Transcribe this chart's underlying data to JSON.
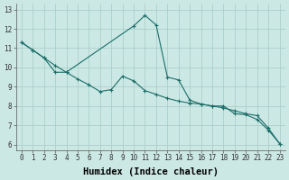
{
  "xlabel": "Humidex (Indice chaleur)",
  "bg_color": "#cce8e4",
  "grid_color": "#aacfca",
  "line_color": "#1a6e6a",
  "xlim": [
    -0.5,
    23.5
  ],
  "ylim": [
    5.7,
    13.3
  ],
  "yticks": [
    6,
    7,
    8,
    9,
    10,
    11,
    12,
    13
  ],
  "xticks": [
    0,
    1,
    2,
    3,
    4,
    5,
    6,
    7,
    8,
    9,
    10,
    11,
    12,
    13,
    14,
    15,
    16,
    17,
    18,
    19,
    20,
    21,
    22,
    23
  ],
  "series1_x": [
    0,
    1,
    2,
    3,
    4,
    10,
    11,
    12,
    13,
    14,
    15,
    16,
    17,
    18,
    19,
    20,
    21,
    22,
    23
  ],
  "series1_y": [
    11.3,
    10.9,
    10.5,
    9.75,
    9.75,
    12.15,
    12.7,
    12.2,
    9.5,
    9.35,
    8.3,
    8.1,
    8.0,
    8.0,
    7.6,
    7.55,
    7.3,
    6.75,
    6.05
  ],
  "series2_x": [
    0,
    1,
    2,
    3,
    4,
    5,
    6,
    7,
    8,
    9,
    10,
    11,
    12,
    13,
    14,
    15,
    16,
    17,
    18,
    19,
    20,
    21,
    22,
    23
  ],
  "series2_y": [
    11.3,
    10.9,
    10.5,
    10.1,
    9.75,
    9.4,
    9.1,
    8.75,
    8.85,
    9.55,
    9.3,
    8.8,
    8.6,
    8.4,
    8.25,
    8.15,
    8.1,
    8.0,
    7.9,
    7.75,
    7.6,
    7.5,
    6.85,
    6.05
  ],
  "tick_fontsize": 5.5,
  "label_fontsize": 7.5
}
